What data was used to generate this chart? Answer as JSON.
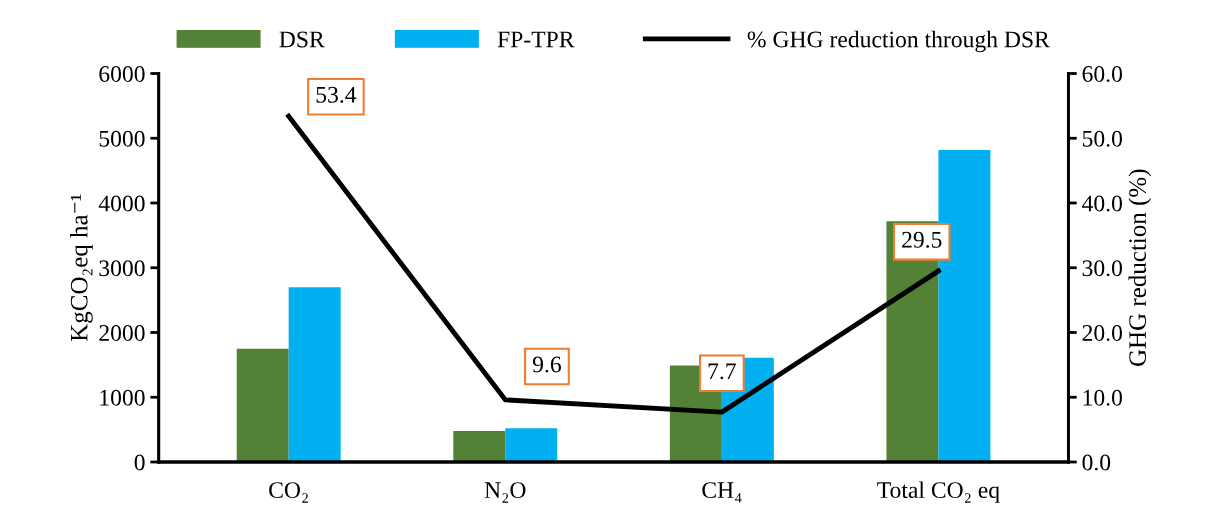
{
  "chart_data": {
    "type": "bar",
    "categories": [
      "CO₂",
      "N₂O",
      "CH₄",
      "Total CO₂ eq"
    ],
    "ylabel": "KgCO₂eq ha⁻¹",
    "y2label": "GHG reduction (%)",
    "series": [
      {
        "name": "DSR",
        "color": "#538135",
        "values": [
          1750,
          480,
          1490,
          3720
        ]
      },
      {
        "name": "FP-TPR",
        "color": "#00b0f0",
        "values": [
          2700,
          520,
          1610,
          4820
        ]
      },
      {
        "name": "% GHG reduction through DSR",
        "type": "line",
        "axis": "y2",
        "color": "#000000",
        "values": [
          53.4,
          9.6,
          7.7,
          29.5
        ],
        "data_labels": true,
        "marker": "none",
        "line_style": "solid"
      }
    ],
    "ylim": [
      0,
      6000
    ],
    "yticks": [
      0,
      1000,
      2000,
      3000,
      4000,
      5000,
      6000
    ],
    "y2lim": [
      0,
      60
    ],
    "y2ticks": [
      {
        "value": 0,
        "label": "0.0"
      },
      {
        "value": 10,
        "label": "10.0"
      },
      {
        "value": 20,
        "label": "20.0"
      },
      {
        "value": 30,
        "label": "30.0"
      },
      {
        "value": 40,
        "label": "40.0"
      },
      {
        "value": 50,
        "label": "50.0"
      },
      {
        "value": 60,
        "label": "60.0"
      }
    ],
    "legend": "top",
    "grid": false
  }
}
